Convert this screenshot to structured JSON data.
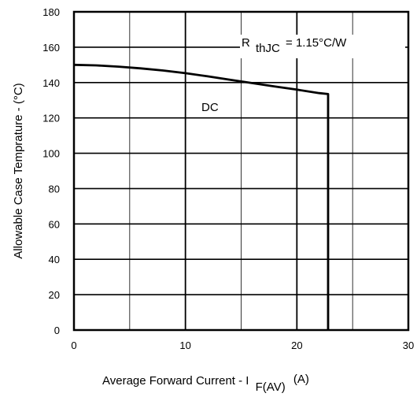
{
  "chart_data": {
    "type": "line",
    "xlabel": "Average Forward Current  - I",
    "xlabel_sub": "F(AV)",
    "xlabel_unit": "(A)",
    "ylabel": "Allowable Case Temprature - (°C)",
    "xlim": [
      0,
      30
    ],
    "ylim": [
      0,
      180
    ],
    "x_ticks": [
      "0",
      "10",
      "20",
      "30"
    ],
    "y_ticks": [
      "0",
      "20",
      "40",
      "60",
      "80",
      "100",
      "120",
      "140",
      "160",
      "180"
    ],
    "grid": true,
    "series": [
      {
        "name": "DC",
        "x": [
          0,
          2,
          4,
          6,
          8,
          10,
          12,
          14,
          16,
          18,
          20,
          22,
          22.8,
          22.8
        ],
        "y": [
          150,
          149.7,
          149,
          148,
          146.8,
          145.3,
          143.5,
          141.6,
          139.7,
          137.8,
          136,
          134,
          133.5,
          0
        ]
      }
    ],
    "annotations": {
      "series_label": "DC",
      "rth_prefix": "R",
      "rth_sub": "thJC",
      "rth_value": "=  1.15°C/W"
    }
  }
}
